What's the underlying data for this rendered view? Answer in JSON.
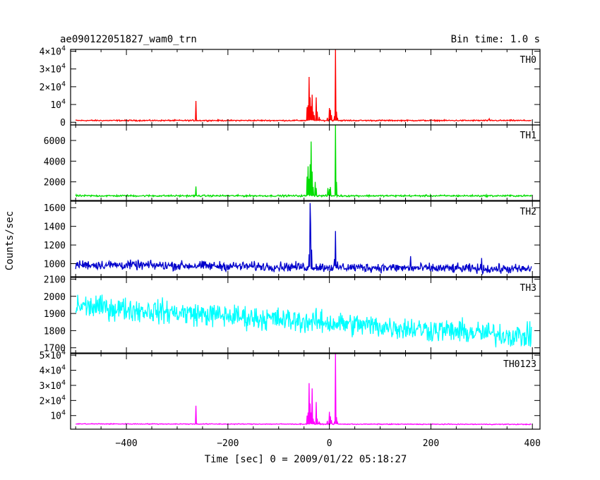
{
  "chart_data": {
    "type": "line",
    "title": "ae090122051827_wam0_trn",
    "subtitle": "Bin time: 1.0 s",
    "xlabel": "Time [sec] 0 = 2009/01/22 05:18:27",
    "ylabel": "Counts/sec",
    "xlim": [
      -510,
      415
    ],
    "xticks": [
      -400,
      -200,
      0,
      200,
      400
    ],
    "xtick_labels": [
      "−400",
      "−200",
      "0",
      "200",
      "400"
    ],
    "grid": false,
    "panels": [
      {
        "name": "TH0",
        "color": "#ff0000",
        "ylim": [
          -1500,
          41000
        ],
        "yticks": [
          0,
          10000,
          20000,
          30000,
          40000
        ],
        "ytick_labels": [
          {
            "main": "0",
            "exp": ""
          },
          {
            "main": "10",
            "exp": "4"
          },
          {
            "main": "2×10",
            "exp": "4"
          },
          {
            "main": "3×10",
            "exp": "4"
          },
          {
            "main": "4×10",
            "exp": "4"
          }
        ],
        "baseline": 1000,
        "noise": 250,
        "trend": 0,
        "peaks": [
          [
            -263,
            12000
          ],
          [
            -44,
            8500
          ],
          [
            -42,
            9500
          ],
          [
            -40,
            25500
          ],
          [
            -38,
            14000
          ],
          [
            -36,
            9000
          ],
          [
            -34,
            15500
          ],
          [
            -32,
            6000
          ],
          [
            -30,
            4000
          ],
          [
            -26,
            14000
          ],
          [
            -24,
            6000
          ],
          [
            -20,
            3000
          ],
          [
            -4,
            2500
          ],
          [
            0,
            8000
          ],
          [
            2,
            7000
          ],
          [
            4,
            4000
          ],
          [
            10,
            3500
          ],
          [
            12,
            41000
          ],
          [
            14,
            6000
          ],
          [
            16,
            2500
          ],
          [
            315,
            2000
          ]
        ]
      },
      {
        "name": "TH1",
        "color": "#00dd00",
        "ylim": [
          200,
          7500
        ],
        "yticks": [
          2000,
          4000,
          6000
        ],
        "ytick_labels": [
          {
            "main": "2000",
            "exp": ""
          },
          {
            "main": "4000",
            "exp": ""
          },
          {
            "main": "6000",
            "exp": ""
          }
        ],
        "baseline": 650,
        "noise": 60,
        "trend": 0,
        "peaks": [
          [
            -263,
            1550
          ],
          [
            -44,
            2500
          ],
          [
            -42,
            3500
          ],
          [
            -40,
            2300
          ],
          [
            -38,
            3700
          ],
          [
            -36,
            5900
          ],
          [
            -34,
            3000
          ],
          [
            -32,
            1500
          ],
          [
            -28,
            2000
          ],
          [
            -26,
            1400
          ],
          [
            -3,
            1400
          ],
          [
            0,
            1300
          ],
          [
            2,
            1500
          ],
          [
            12,
            7500
          ],
          [
            14,
            2000
          ]
        ]
      },
      {
        "name": "TH2",
        "color": "#0000cc",
        "ylim": [
          860,
          1670
        ],
        "yticks": [
          1000,
          1200,
          1400,
          1600
        ],
        "ytick_labels": [
          {
            "main": "1000",
            "exp": ""
          },
          {
            "main": "1200",
            "exp": ""
          },
          {
            "main": "1400",
            "exp": ""
          },
          {
            "main": "1600",
            "exp": ""
          }
        ],
        "baseline": 990,
        "noise": 35,
        "trend": -50,
        "peaks": [
          [
            -38,
            1650
          ],
          [
            -37,
            1430
          ],
          [
            -40,
            1100
          ],
          [
            -35,
            1150
          ],
          [
            12,
            1350
          ],
          [
            10,
            1050
          ],
          [
            160,
            1080
          ],
          [
            300,
            1060
          ]
        ]
      },
      {
        "name": "TH3",
        "color": "#00ffff",
        "ylim": [
          1670,
          2110
        ],
        "yticks": [
          1700,
          1800,
          1900,
          2000,
          2100
        ],
        "ytick_labels": [
          {
            "main": "1700",
            "exp": ""
          },
          {
            "main": "1800",
            "exp": ""
          },
          {
            "main": "1900",
            "exp": ""
          },
          {
            "main": "2000",
            "exp": ""
          },
          {
            "main": "2100",
            "exp": ""
          }
        ],
        "baseline": 1945,
        "noise": 48,
        "trend": -180,
        "peaks": []
      },
      {
        "name": "TH0123",
        "color": "#ff00ff",
        "ylim": [
          1000,
          51000
        ],
        "yticks": [
          10000,
          20000,
          30000,
          40000,
          50000
        ],
        "ytick_labels": [
          {
            "main": "10",
            "exp": "4"
          },
          {
            "main": "2×10",
            "exp": "4"
          },
          {
            "main": "3×10",
            "exp": "4"
          },
          {
            "main": "4×10",
            "exp": "4"
          },
          {
            "main": "5×10",
            "exp": "4"
          }
        ],
        "baseline": 4500,
        "noise": 200,
        "trend": -300,
        "peaks": [
          [
            -263,
            16500
          ],
          [
            -44,
            10000
          ],
          [
            -42,
            12000
          ],
          [
            -40,
            31500
          ],
          [
            -38,
            18000
          ],
          [
            -36,
            12000
          ],
          [
            -34,
            28000
          ],
          [
            -32,
            8000
          ],
          [
            -30,
            6000
          ],
          [
            -26,
            19000
          ],
          [
            -24,
            8000
          ],
          [
            -20,
            6000
          ],
          [
            -4,
            6500
          ],
          [
            0,
            12500
          ],
          [
            2,
            9500
          ],
          [
            4,
            7000
          ],
          [
            10,
            6000
          ],
          [
            12,
            51000
          ],
          [
            14,
            9000
          ],
          [
            16,
            5500
          ]
        ]
      }
    ]
  }
}
